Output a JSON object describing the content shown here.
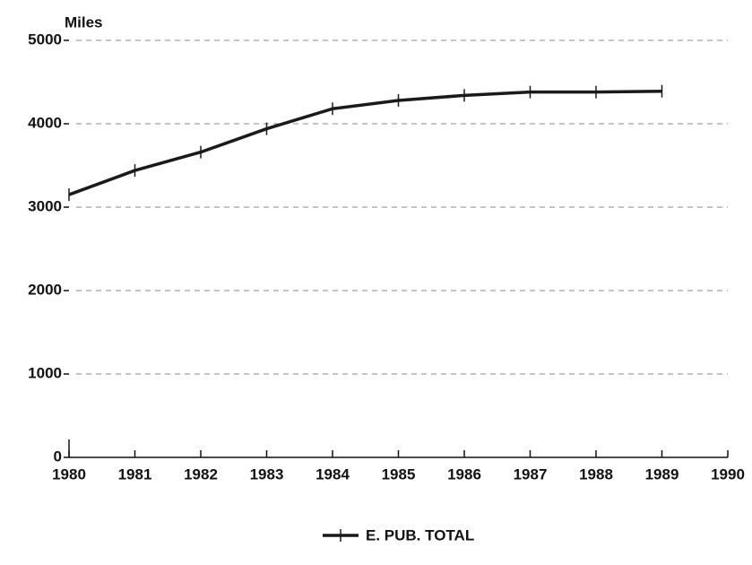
{
  "chart_data": {
    "type": "line",
    "y_label": "Miles",
    "x": [
      1980,
      1981,
      1982,
      1983,
      1984,
      1985,
      1986,
      1987,
      1988,
      1989
    ],
    "series": [
      {
        "name": "E. PUB. TOTAL",
        "color": "#1a1a1a",
        "values": [
          3150,
          3440,
          3660,
          3940,
          4180,
          4280,
          4340,
          4380,
          4380,
          4390
        ]
      }
    ],
    "xlim": [
      1980,
      1990
    ],
    "xticks": [
      1980,
      1981,
      1982,
      1983,
      1984,
      1985,
      1986,
      1987,
      1988,
      1989,
      1990
    ],
    "ylim": [
      0,
      5000
    ],
    "yticks": [
      0,
      1000,
      2000,
      3000,
      4000,
      5000
    ],
    "grid": true,
    "legend": "bottom"
  }
}
